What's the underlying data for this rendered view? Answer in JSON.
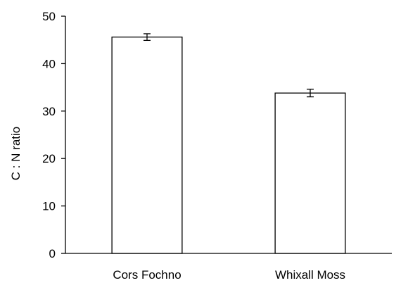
{
  "chart_data": {
    "type": "bar",
    "title": "",
    "xlabel": "",
    "ylabel": "C : N ratio",
    "ylim": [
      0,
      50
    ],
    "yticks": [
      0,
      10,
      20,
      30,
      40,
      50
    ],
    "grid": false,
    "categories": [
      "Cors Fochno",
      "Whixall Moss"
    ],
    "values": [
      45.6,
      33.8
    ],
    "errors": [
      0.7,
      0.8
    ],
    "colors": {
      "bar_fill": "#ffffff",
      "bar_stroke": "#000000",
      "axis": "#000000"
    }
  }
}
